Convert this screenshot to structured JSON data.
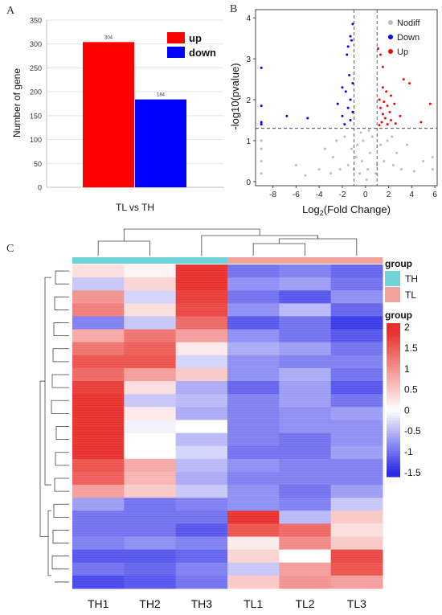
{
  "panels": {
    "a": "A",
    "b": "B",
    "c": "C"
  },
  "colors": {
    "up": "#ff0000",
    "down": "#0000ff",
    "nodiff": "#bbbbbb",
    "group_TH": "#6fd3d8",
    "group_TL": "#f1a39b",
    "heat_high": "#e8302b",
    "heat_mid": "#ffffff",
    "heat_low": "#2a2ae8"
  },
  "chart_data": [
    {
      "type": "bar",
      "categories": [
        "TL vs TH"
      ],
      "series": [
        {
          "name": "up",
          "values": [
            304
          ],
          "color": "#ff0000"
        },
        {
          "name": "down",
          "values": [
            184
          ],
          "color": "#0000ff"
        }
      ],
      "data_labels": [
        "304",
        "184"
      ],
      "xlabel": "TL vs TH",
      "ylabel": "Number of gene",
      "ylim": [
        0,
        350
      ],
      "yticks": [
        0,
        50,
        100,
        150,
        200,
        250,
        300,
        350
      ],
      "grid": "horizontal",
      "legend": "top-right"
    },
    {
      "type": "scatter",
      "xlabel_base": "Log",
      "xlabel_sub": "2",
      "xlabel_rest": "(Fold Change)",
      "ylabel": "-log10(pvalue)",
      "xlim": [
        -9.5,
        6.2
      ],
      "ylim": [
        -0.1,
        4.2
      ],
      "xticks": [
        -8,
        -6,
        -4,
        -2,
        0,
        2,
        4,
        6
      ],
      "yticks": [
        0,
        1,
        2,
        3,
        4
      ],
      "thresholds": {
        "x": [
          -1,
          1
        ],
        "y": 1.3
      },
      "legend": "top-right",
      "series": [
        {
          "name": "Nodiff",
          "color": "#bbbbbb",
          "points": [
            [
              -0.5,
              0.2
            ],
            [
              -0.3,
              0.5
            ],
            [
              0.2,
              0.3
            ],
            [
              0.4,
              0.7
            ],
            [
              -0.7,
              0.9
            ],
            [
              0.6,
              1.1
            ],
            [
              -0.2,
              1.0
            ],
            [
              0.1,
              0.05
            ],
            [
              -1.5,
              0.4
            ],
            [
              1.6,
              0.5
            ],
            [
              -2.2,
              0.3
            ],
            [
              2.4,
              0.4
            ],
            [
              -3.0,
              0.2
            ],
            [
              3.1,
              0.3
            ],
            [
              -1.2,
              0.8
            ],
            [
              1.3,
              0.9
            ],
            [
              -0.8,
              0.6
            ],
            [
              0.9,
              0.2
            ],
            [
              -2.8,
              0.6
            ],
            [
              2.7,
              0.7
            ],
            [
              -4.0,
              0.3
            ],
            [
              4.2,
              0.25
            ],
            [
              -1.8,
              1.1
            ],
            [
              1.9,
              1.0
            ],
            [
              -0.4,
              1.2
            ],
            [
              0.3,
              1.25
            ],
            [
              -9,
              0.2
            ],
            [
              -9,
              0.5
            ],
            [
              -9,
              0.8
            ],
            [
              -9,
              1.0
            ],
            [
              5.8,
              0.3
            ],
            [
              5.8,
              0.6
            ],
            [
              -5.2,
              0.15
            ],
            [
              5.0,
              0.5
            ],
            [
              -3.5,
              0.8
            ],
            [
              3.6,
              0.9
            ],
            [
              -2.5,
              1.0
            ],
            [
              2.3,
              1.1
            ],
            [
              -1.0,
              0.3
            ],
            [
              1.0,
              0.4
            ],
            [
              -6.0,
              0.4
            ]
          ]
        },
        {
          "name": "Down",
          "color": "#0000ff",
          "points": [
            [
              -1.1,
              3.85
            ],
            [
              -1.3,
              3.55
            ],
            [
              -1.2,
              3.45
            ],
            [
              -1.5,
              3.3
            ],
            [
              -1.6,
              3.1
            ],
            [
              -1.4,
              2.6
            ],
            [
              -1.1,
              2.4
            ],
            [
              -2.0,
              2.3
            ],
            [
              -1.7,
              2.2
            ],
            [
              -1.3,
              2.0
            ],
            [
              -2.4,
              1.9
            ],
            [
              -1.5,
              1.8
            ],
            [
              -1.1,
              1.7
            ],
            [
              -2.0,
              1.6
            ],
            [
              -1.3,
              1.5
            ],
            [
              -1.8,
              1.4
            ],
            [
              -9,
              2.78
            ],
            [
              -9,
              1.85
            ],
            [
              -9,
              1.45
            ],
            [
              -9,
              1.4
            ],
            [
              -6.8,
              1.6
            ],
            [
              -5.0,
              1.55
            ]
          ]
        },
        {
          "name": "Up",
          "color": "#ff0000",
          "points": [
            [
              1.1,
              3.25
            ],
            [
              1.3,
              3.1
            ],
            [
              1.5,
              2.8
            ],
            [
              3.3,
              2.5
            ],
            [
              3.8,
              2.4
            ],
            [
              1.5,
              2.3
            ],
            [
              1.8,
              2.2
            ],
            [
              2.2,
              2.1
            ],
            [
              1.2,
              2.0
            ],
            [
              1.6,
              1.95
            ],
            [
              2.5,
              1.9
            ],
            [
              1.9,
              1.85
            ],
            [
              1.3,
              1.8
            ],
            [
              2.1,
              1.7
            ],
            [
              1.5,
              1.65
            ],
            [
              3.0,
              1.6
            ],
            [
              1.7,
              1.55
            ],
            [
              2.2,
              1.5
            ],
            [
              1.4,
              1.45
            ],
            [
              2.6,
              1.42
            ],
            [
              1.9,
              1.4
            ],
            [
              1.2,
              1.38
            ],
            [
              5.6,
              1.9
            ],
            [
              4.8,
              1.45
            ]
          ]
        }
      ]
    },
    {
      "type": "heatmap",
      "columns": [
        "TH1",
        "TH2",
        "TH3",
        "TL1",
        "TL2",
        "TL3"
      ],
      "column_groups": [
        "TH",
        "TH",
        "TH",
        "TL",
        "TL",
        "TL"
      ],
      "group_legend_title": "group",
      "group_legend": [
        "TH",
        "TL"
      ],
      "colorbar_title": "group",
      "colorbar_ticks": [
        "2",
        "1.5",
        "1",
        "0.5",
        "0",
        "-0.5",
        "-1",
        "-1.5"
      ],
      "colorbar_range": [
        -1.6,
        2.1
      ],
      "row_blocks": [
        [
          0.3,
          0.1,
          1.9,
          -1.0,
          -0.9,
          -1.1
        ],
        [
          -0.4,
          0.4,
          1.9,
          -0.8,
          -0.7,
          -1.0
        ],
        [
          1.0,
          -0.3,
          1.8,
          -1.0,
          -1.2,
          -0.8
        ],
        [
          1.2,
          0.3,
          1.7,
          -0.8,
          -0.5,
          -1.1
        ],
        [
          -0.9,
          -0.4,
          1.4,
          -1.2,
          -1.0,
          -1.4
        ],
        [
          0.8,
          1.3,
          0.9,
          -0.8,
          -1.0,
          -1.2
        ],
        [
          1.3,
          1.5,
          0.2,
          -0.6,
          -0.7,
          -1.0
        ],
        [
          1.6,
          1.6,
          -0.3,
          -0.8,
          -0.9,
          -0.9
        ],
        [
          1.4,
          0.9,
          0.5,
          -0.8,
          -0.6,
          -1.0
        ],
        [
          1.8,
          0.3,
          -0.6,
          -1.1,
          -0.7,
          -1.2
        ],
        [
          1.9,
          -0.4,
          -0.5,
          -0.9,
          -0.7,
          -1.0
        ],
        [
          1.9,
          0.2,
          -0.6,
          -0.9,
          -0.8,
          -0.7
        ],
        [
          1.9,
          -0.1,
          0.0,
          -0.9,
          -0.8,
          -0.8
        ],
        [
          1.9,
          0.0,
          -0.5,
          -0.9,
          -1.0,
          -0.8
        ],
        [
          1.9,
          0.0,
          -0.3,
          -1.0,
          -1.0,
          -0.7
        ],
        [
          1.6,
          0.8,
          -0.5,
          -0.8,
          -0.9,
          -0.9
        ],
        [
          1.5,
          0.7,
          -0.6,
          -0.9,
          -0.9,
          -0.9
        ],
        [
          0.9,
          0.5,
          -0.4,
          -0.8,
          -1.0,
          -0.7
        ],
        [
          -0.7,
          -1.0,
          -0.9,
          -0.8,
          -0.9,
          -0.4
        ],
        [
          -1.0,
          -1.0,
          -1.0,
          1.9,
          -0.5,
          0.5
        ],
        [
          -1.0,
          -1.0,
          -1.2,
          1.6,
          1.4,
          0.3
        ],
        [
          -0.9,
          -0.8,
          -0.9,
          0.2,
          1.1,
          0.5
        ],
        [
          -1.2,
          -1.2,
          -1.1,
          0.4,
          0.0,
          1.7
        ],
        [
          -1.0,
          -1.1,
          -0.9,
          -0.4,
          0.9,
          1.6
        ],
        [
          -1.3,
          -1.2,
          -1.0,
          0.5,
          1.0,
          0.9
        ]
      ]
    }
  ]
}
